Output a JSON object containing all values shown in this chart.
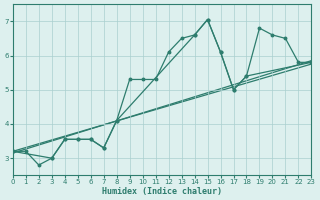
{
  "xlabel": "Humidex (Indice chaleur)",
  "xlim": [
    0,
    23
  ],
  "ylim": [
    2.5,
    7.5
  ],
  "yticks": [
    3,
    4,
    5,
    6,
    7
  ],
  "xticks": [
    0,
    1,
    2,
    3,
    4,
    5,
    6,
    7,
    8,
    9,
    10,
    11,
    12,
    13,
    14,
    15,
    16,
    17,
    18,
    19,
    20,
    21,
    22,
    23
  ],
  "bg_color": "#ddf0ee",
  "grid_color": "#aacfcf",
  "line_color": "#2e7d6e",
  "line1_x": [
    0,
    1,
    2,
    3,
    4,
    5,
    6,
    7,
    8,
    9,
    10,
    11,
    12,
    13,
    14,
    15,
    16,
    17,
    18,
    19,
    20,
    21,
    22,
    23
  ],
  "line1_y": [
    3.2,
    3.2,
    2.8,
    3.0,
    3.55,
    3.55,
    3.55,
    3.3,
    4.1,
    5.3,
    5.3,
    5.3,
    6.1,
    6.5,
    6.6,
    7.05,
    6.1,
    5.0,
    5.4,
    6.8,
    6.6,
    6.5,
    5.8,
    5.8
  ],
  "line2_x": [
    0,
    3,
    4,
    5,
    6,
    7,
    8,
    14,
    15,
    16,
    17,
    18,
    23
  ],
  "line2_y": [
    3.2,
    3.0,
    3.55,
    3.55,
    3.55,
    3.3,
    4.1,
    6.6,
    7.05,
    6.1,
    5.0,
    5.4,
    5.8
  ],
  "trend1_x": [
    0,
    23
  ],
  "trend1_y": [
    3.15,
    5.85
  ],
  "trend2_x": [
    0,
    23
  ],
  "trend2_y": [
    3.15,
    5.85
  ]
}
